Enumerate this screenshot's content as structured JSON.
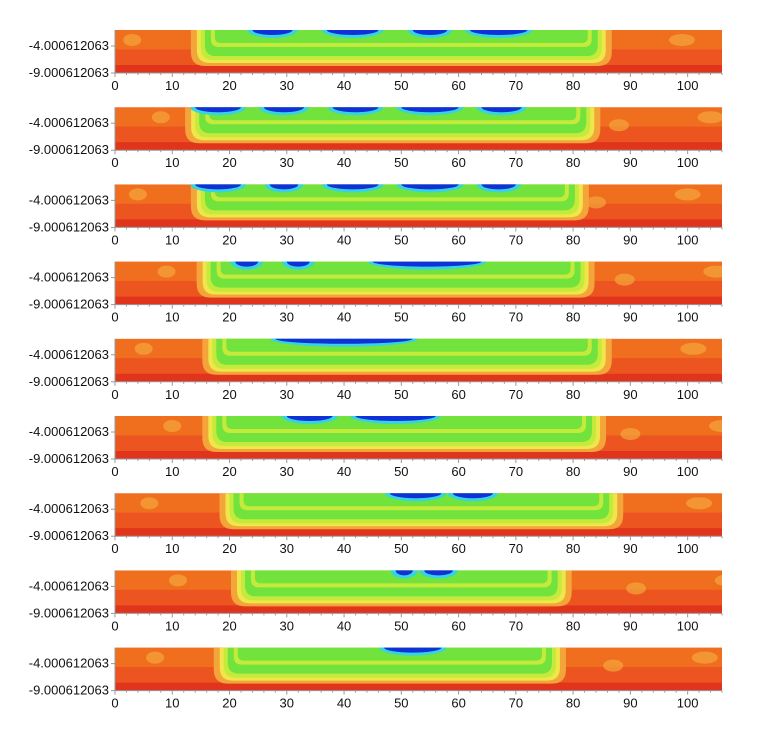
{
  "chart_data": {
    "type": "heatmap",
    "panel_count": 9,
    "x_ticks": [
      "0",
      "10",
      "20",
      "30",
      "40",
      "50",
      "60",
      "70",
      "80",
      "90",
      "100"
    ],
    "x_tick_values": [
      0,
      10,
      20,
      30,
      40,
      50,
      60,
      70,
      80,
      90,
      100
    ],
    "xlim": [
      0,
      106
    ],
    "y_tick_labels": [
      "-4.000612063",
      "-9.000612063"
    ],
    "ylim": [
      -9.000612063,
      -1.5
    ],
    "colors": {
      "base": "#ec5520",
      "dark": "#e0341c",
      "mid": "#f1781f",
      "light": "#f4a53a",
      "yellow": "#eee64a",
      "lime": "#c4ea3c",
      "green": "#72e23c",
      "cyan": "#37d3e0",
      "blue": "#1030d8",
      "axis": "#999999"
    },
    "panels": [
      {
        "green_start": 15,
        "green_end": 85,
        "blue_ranges": [
          [
            24,
            31
          ],
          [
            37,
            46
          ],
          [
            52,
            58
          ],
          [
            62,
            72
          ]
        ]
      },
      {
        "green_start": 14,
        "green_end": 83,
        "blue_ranges": [
          [
            14,
            22
          ],
          [
            26,
            33
          ],
          [
            38,
            46
          ],
          [
            50,
            60
          ],
          [
            64,
            71
          ]
        ]
      },
      {
        "green_start": 15,
        "green_end": 81,
        "blue_ranges": [
          [
            14,
            22
          ],
          [
            27,
            32
          ],
          [
            37,
            46
          ],
          [
            50,
            60
          ],
          [
            64,
            70
          ]
        ]
      },
      {
        "green_start": 16,
        "green_end": 82,
        "blue_ranges": [
          [
            21,
            25
          ],
          [
            30,
            34
          ],
          [
            45,
            64
          ]
        ]
      },
      {
        "green_start": 17,
        "green_end": 85,
        "blue_ranges": [
          [
            28,
            52
          ]
        ]
      },
      {
        "green_start": 17,
        "green_end": 84,
        "blue_ranges": [
          [
            30,
            38
          ],
          [
            42,
            56
          ]
        ]
      },
      {
        "green_start": 20,
        "green_end": 87,
        "blue_ranges": [
          [
            48,
            57
          ],
          [
            59,
            66
          ]
        ]
      },
      {
        "green_start": 22,
        "green_end": 78,
        "blue_ranges": [
          [
            49,
            52
          ],
          [
            54,
            59
          ]
        ]
      },
      {
        "green_start": 19,
        "green_end": 77,
        "blue_ranges": [
          [
            47,
            57
          ]
        ]
      }
    ]
  }
}
